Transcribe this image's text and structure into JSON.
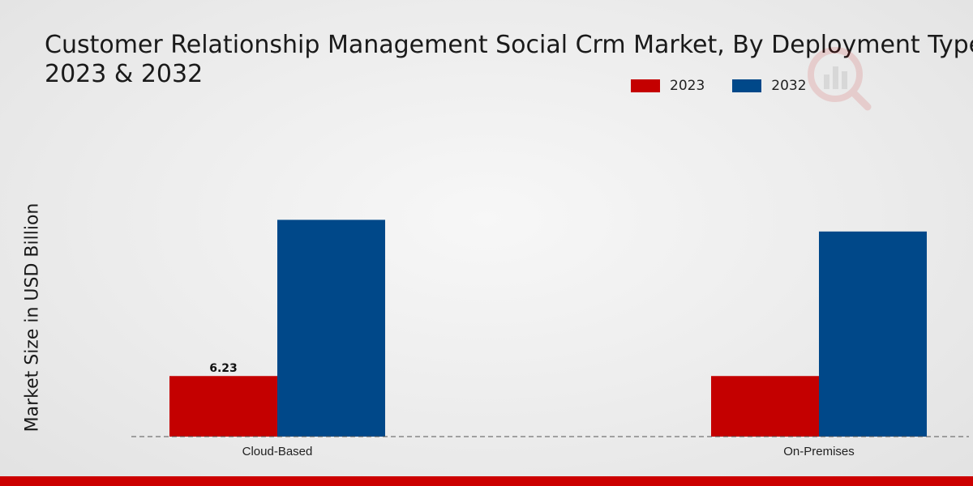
{
  "chart_data": {
    "type": "bar",
    "title_lines": [
      "Customer Relationship Management Social Crm Market, By Deployment Type,",
      "2023 & 2032"
    ],
    "ylabel": "Market Size in USD Billion",
    "xlabel": "",
    "categories": [
      "Cloud-Based",
      "On-Premises"
    ],
    "series": [
      {
        "name": "2023",
        "color": "#c40000",
        "values": [
          6.23,
          6.23
        ]
      },
      {
        "name": "2032",
        "color": "#004889",
        "values": [
          22.3,
          21.1
        ]
      }
    ],
    "data_labels": [
      {
        "series": 0,
        "category": 0,
        "text": "6.23"
      }
    ],
    "ylim": [
      0,
      27
    ],
    "grid": false,
    "legend_position": "top-right"
  },
  "colors": {
    "accent_red": "#cc0000",
    "series_2023": "#c40000",
    "series_2032": "#004889"
  }
}
